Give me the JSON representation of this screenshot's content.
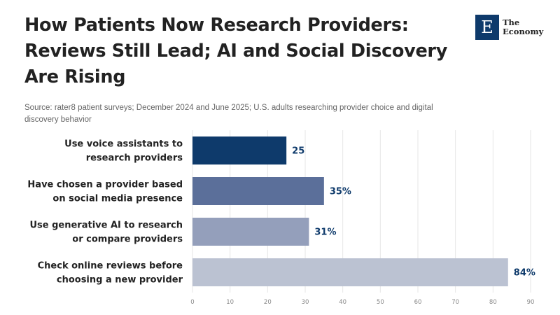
{
  "header": {
    "title_lines": [
      "How Patients Now Research Providers:",
      "Reviews Still Lead; AI and Social Discovery",
      "Are Rising"
    ],
    "source": "Source: rater8 patient surveys; December 2024 and June 2025; U.S. adults researching provider choice and digital discovery behavior"
  },
  "logo": {
    "mark": "E",
    "line1": "The",
    "line2": "Economy"
  },
  "chart_data": {
    "type": "bar",
    "orientation": "horizontal",
    "title": "How Patients Now Research Providers: Reviews Still Lead; AI and Social Discovery Are Rising",
    "categories": [
      [
        "Use voice assistants to",
        "research providers"
      ],
      [
        "Have chosen a provider based",
        "on social media presence"
      ],
      [
        "Use generative AI to research",
        "or compare providers"
      ],
      [
        "Check online reviews before",
        "choosing a new provider"
      ]
    ],
    "values": [
      25,
      35,
      31,
      84
    ],
    "value_labels": [
      "25",
      "35%",
      "31%",
      "84%"
    ],
    "colors": [
      "#0e3a6b",
      "#5b6f9a",
      "#949fbb",
      "#bbc2d2"
    ],
    "xlim": [
      0,
      90
    ],
    "xticks": [
      0,
      10,
      20,
      30,
      40,
      50,
      60,
      70,
      80,
      90
    ],
    "grid": true,
    "xlabel": "",
    "ylabel": ""
  }
}
